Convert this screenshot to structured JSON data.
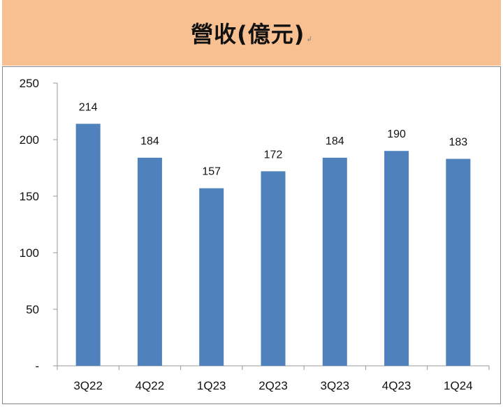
{
  "header": {
    "title": "營收(億元)",
    "mark": "↲"
  },
  "colors": {
    "header_bg": "#f8c090",
    "bar": "#4f81bd"
  },
  "chart_data": {
    "type": "bar",
    "title": "營收(億元)",
    "categories": [
      "3Q22",
      "4Q22",
      "1Q23",
      "2Q23",
      "3Q23",
      "4Q23",
      "1Q24"
    ],
    "values": [
      214,
      184,
      157,
      172,
      184,
      190,
      183
    ],
    "data_labels": [
      "214",
      "184",
      "157",
      "172",
      "184",
      "190",
      "183"
    ],
    "xlabel": "",
    "ylabel": "",
    "ylim": [
      0,
      250
    ],
    "yticks": [
      0,
      50,
      100,
      150,
      200,
      250
    ],
    "ytick_labels": [
      "-",
      "50",
      "100",
      "150",
      "200",
      "250"
    ],
    "grid": false,
    "legend": "none"
  }
}
